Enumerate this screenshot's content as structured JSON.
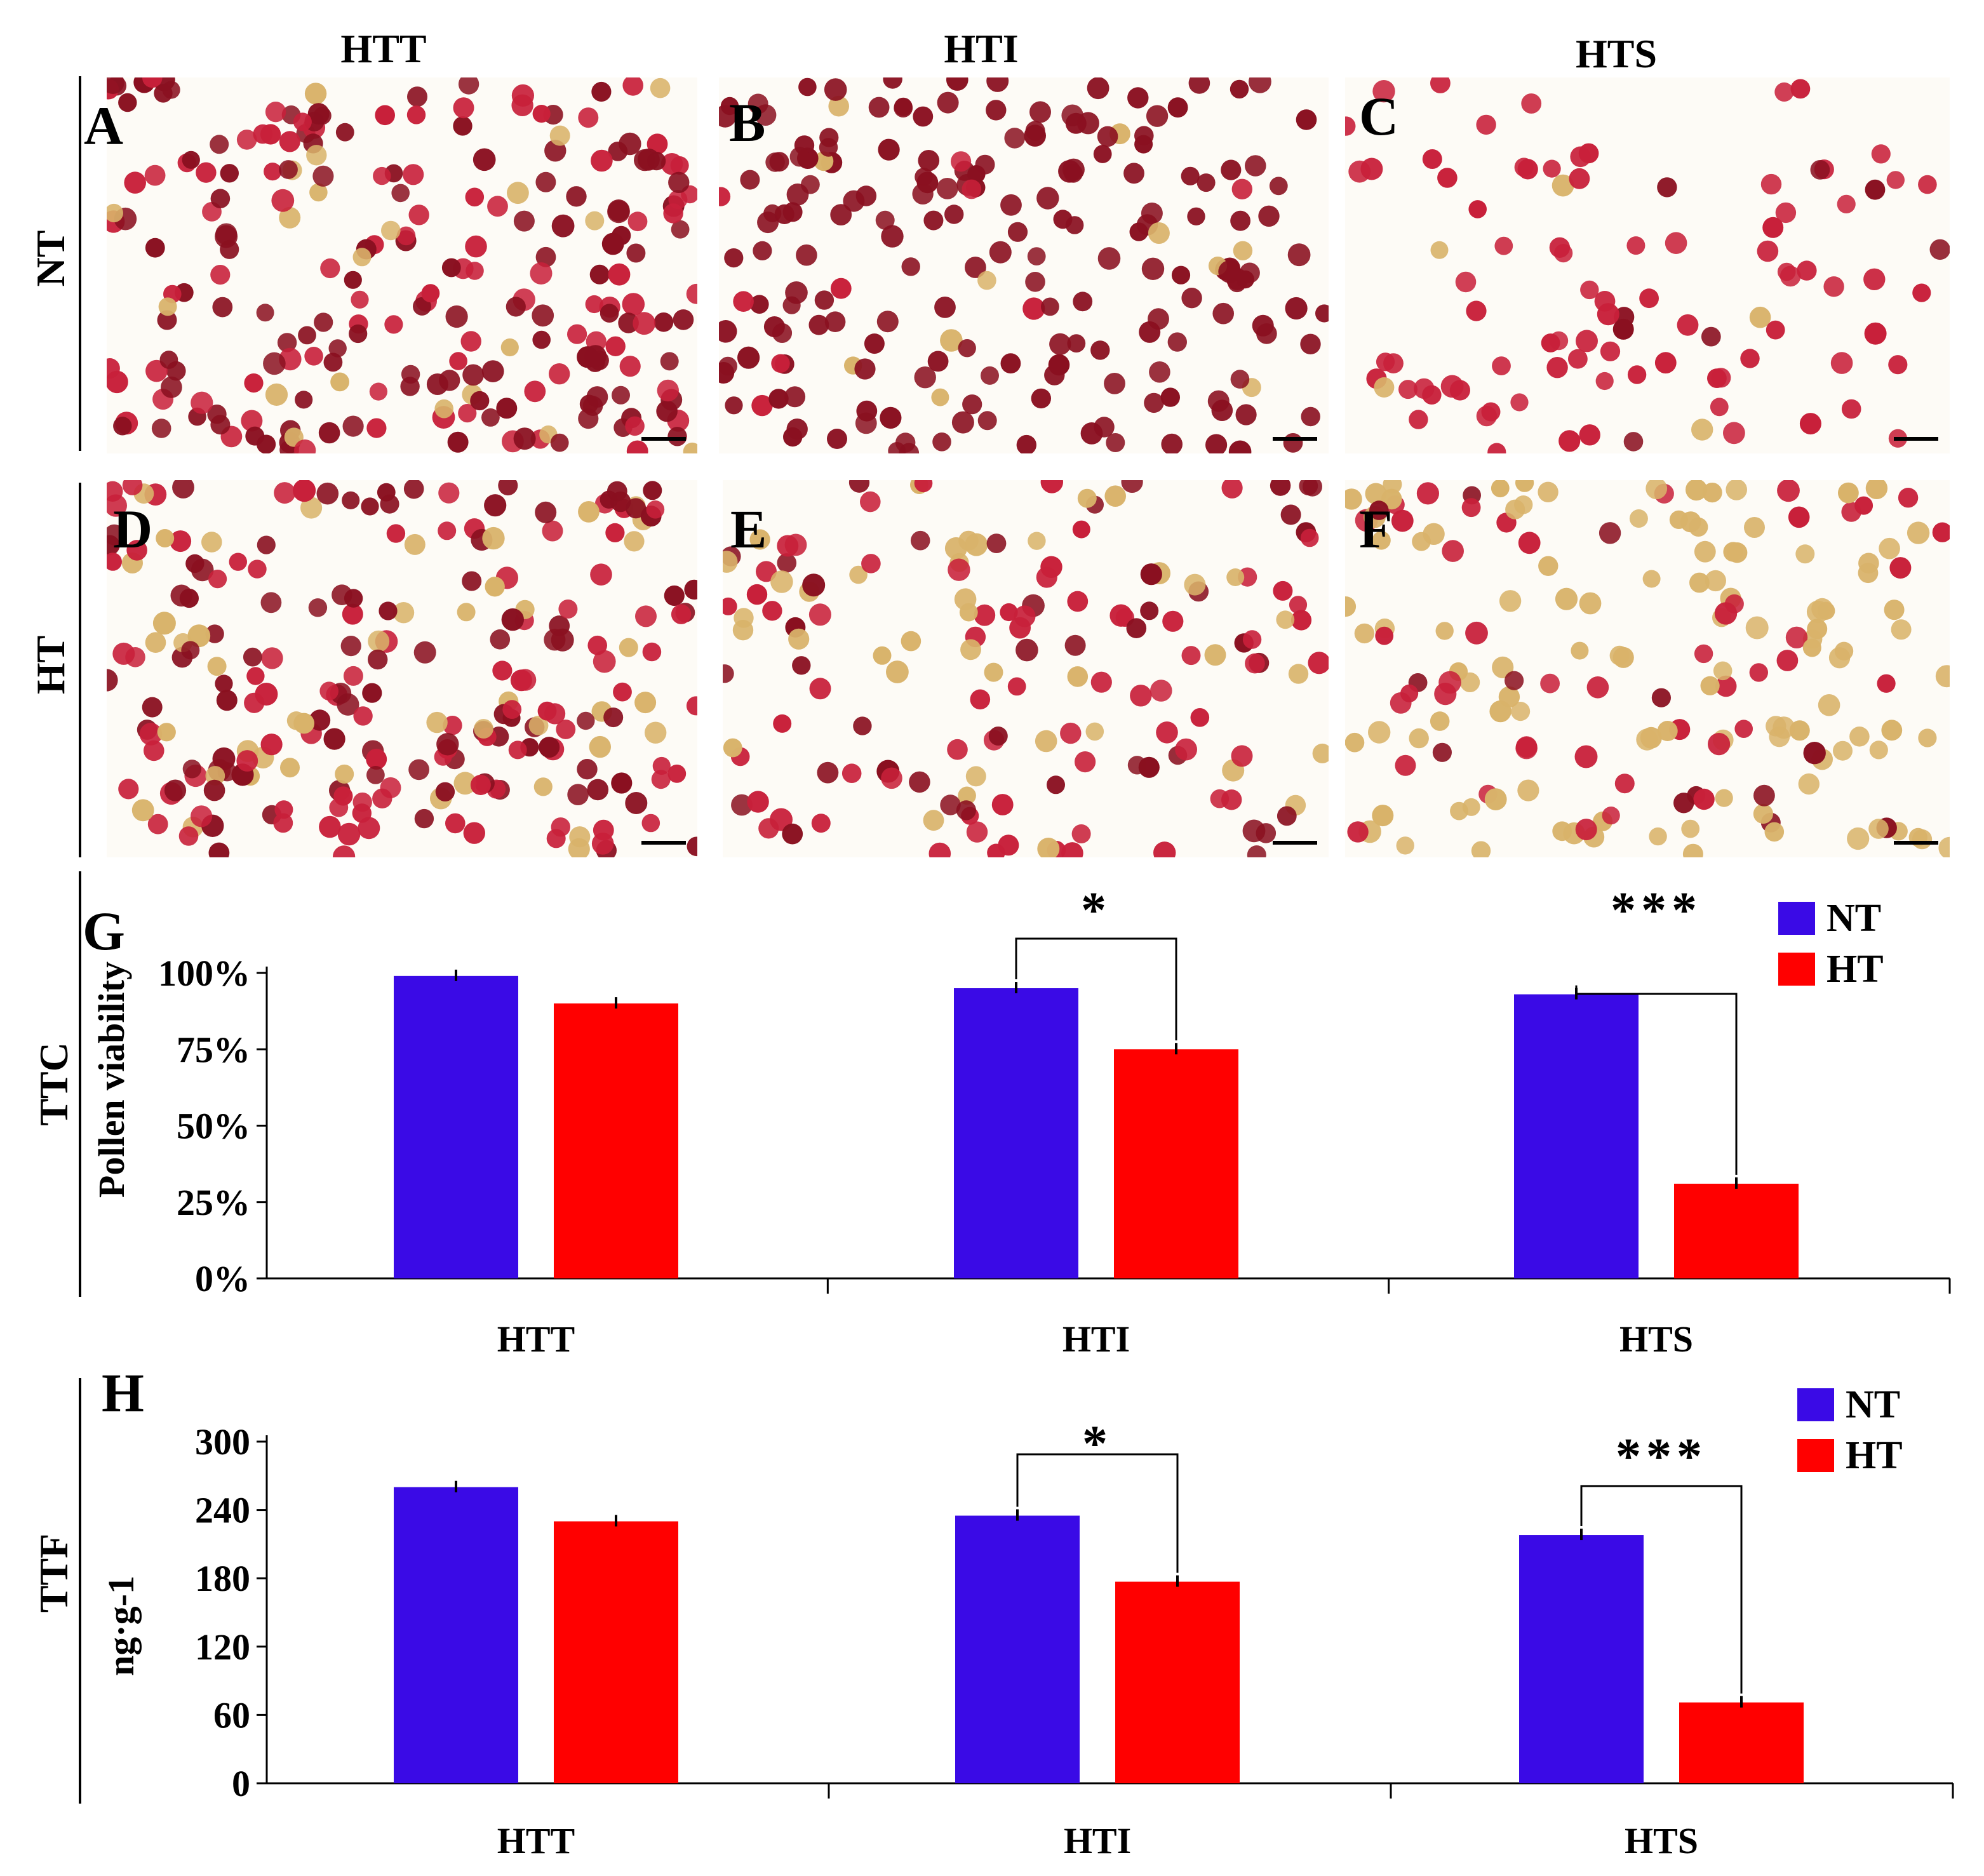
{
  "columns": [
    "HTT",
    "HTI",
    "HTS"
  ],
  "rows": [
    "NT",
    "HT"
  ],
  "panels": [
    "A",
    "B",
    "C",
    "D",
    "E",
    "F"
  ],
  "chart_row_labels": [
    "TTC",
    "TTF"
  ],
  "colors": {
    "NT": "#3a0ae6",
    "HT": "#ff0000",
    "pollen_dark": "#8a1020",
    "pollen_red": "#c8203a",
    "pollen_light": "#d9b36a"
  },
  "chart_data": [
    {
      "panel": "G",
      "type": "bar",
      "categories": [
        "HTT",
        "HTI",
        "HTS"
      ],
      "ylabel": "Pollen viability",
      "ylim": [
        0,
        100
      ],
      "yticks": [
        "0%",
        "25%",
        "50%",
        "75%",
        "100%"
      ],
      "series": [
        {
          "name": "NT",
          "values": [
            99,
            95,
            93
          ]
        },
        {
          "name": "HT",
          "values": [
            90,
            75,
            31
          ]
        }
      ],
      "significance": [
        {
          "category": "HTI",
          "mark": "*"
        },
        {
          "category": "HTS",
          "mark": "***"
        }
      ],
      "legend": "top-right"
    },
    {
      "panel": "H",
      "type": "bar",
      "categories": [
        "HTT",
        "HTI",
        "HTS"
      ],
      "ylabel": "ng·g-1",
      "ylim": [
        0,
        300
      ],
      "yticks": [
        "0",
        "60",
        "120",
        "180",
        "240",
        "300"
      ],
      "series": [
        {
          "name": "NT",
          "values": [
            260,
            235,
            218
          ]
        },
        {
          "name": "HT",
          "values": [
            230,
            177,
            71
          ]
        }
      ],
      "significance": [
        {
          "category": "HTI",
          "mark": "*"
        },
        {
          "category": "HTS",
          "mark": "***"
        }
      ],
      "legend": "top-right"
    }
  ]
}
